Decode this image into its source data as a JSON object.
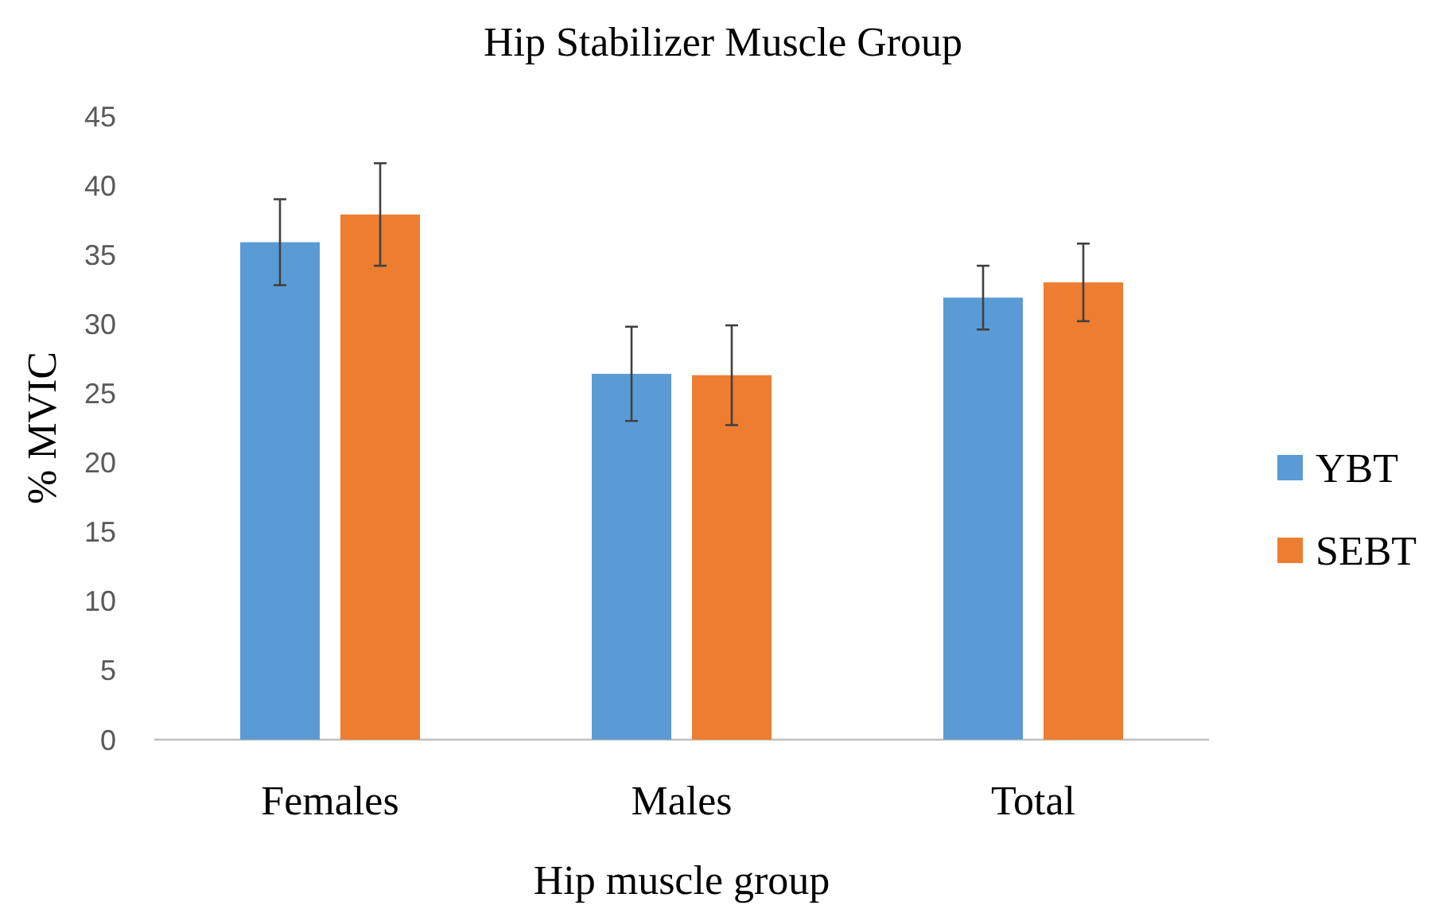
{
  "chart_data": {
    "type": "bar",
    "title": "Hip Stabilizer Muscle Group",
    "xlabel": "Hip muscle group",
    "ylabel": "% MVIC",
    "categories": [
      "Females",
      "Males",
      "Total"
    ],
    "series": [
      {
        "name": "YBT",
        "color": "#5b9bd5",
        "values": [
          35.9,
          26.4,
          31.9
        ],
        "errors": [
          3.1,
          3.4,
          2.3
        ]
      },
      {
        "name": "SEBT",
        "color": "#ed7d31",
        "values": [
          37.9,
          26.3,
          33.0
        ],
        "errors": [
          3.7,
          3.6,
          2.8
        ]
      }
    ],
    "ylim": [
      0,
      45
    ],
    "yticks": [
      0,
      5,
      10,
      15,
      20,
      25,
      30,
      35,
      40,
      45
    ],
    "grid": false,
    "legend": "right"
  }
}
